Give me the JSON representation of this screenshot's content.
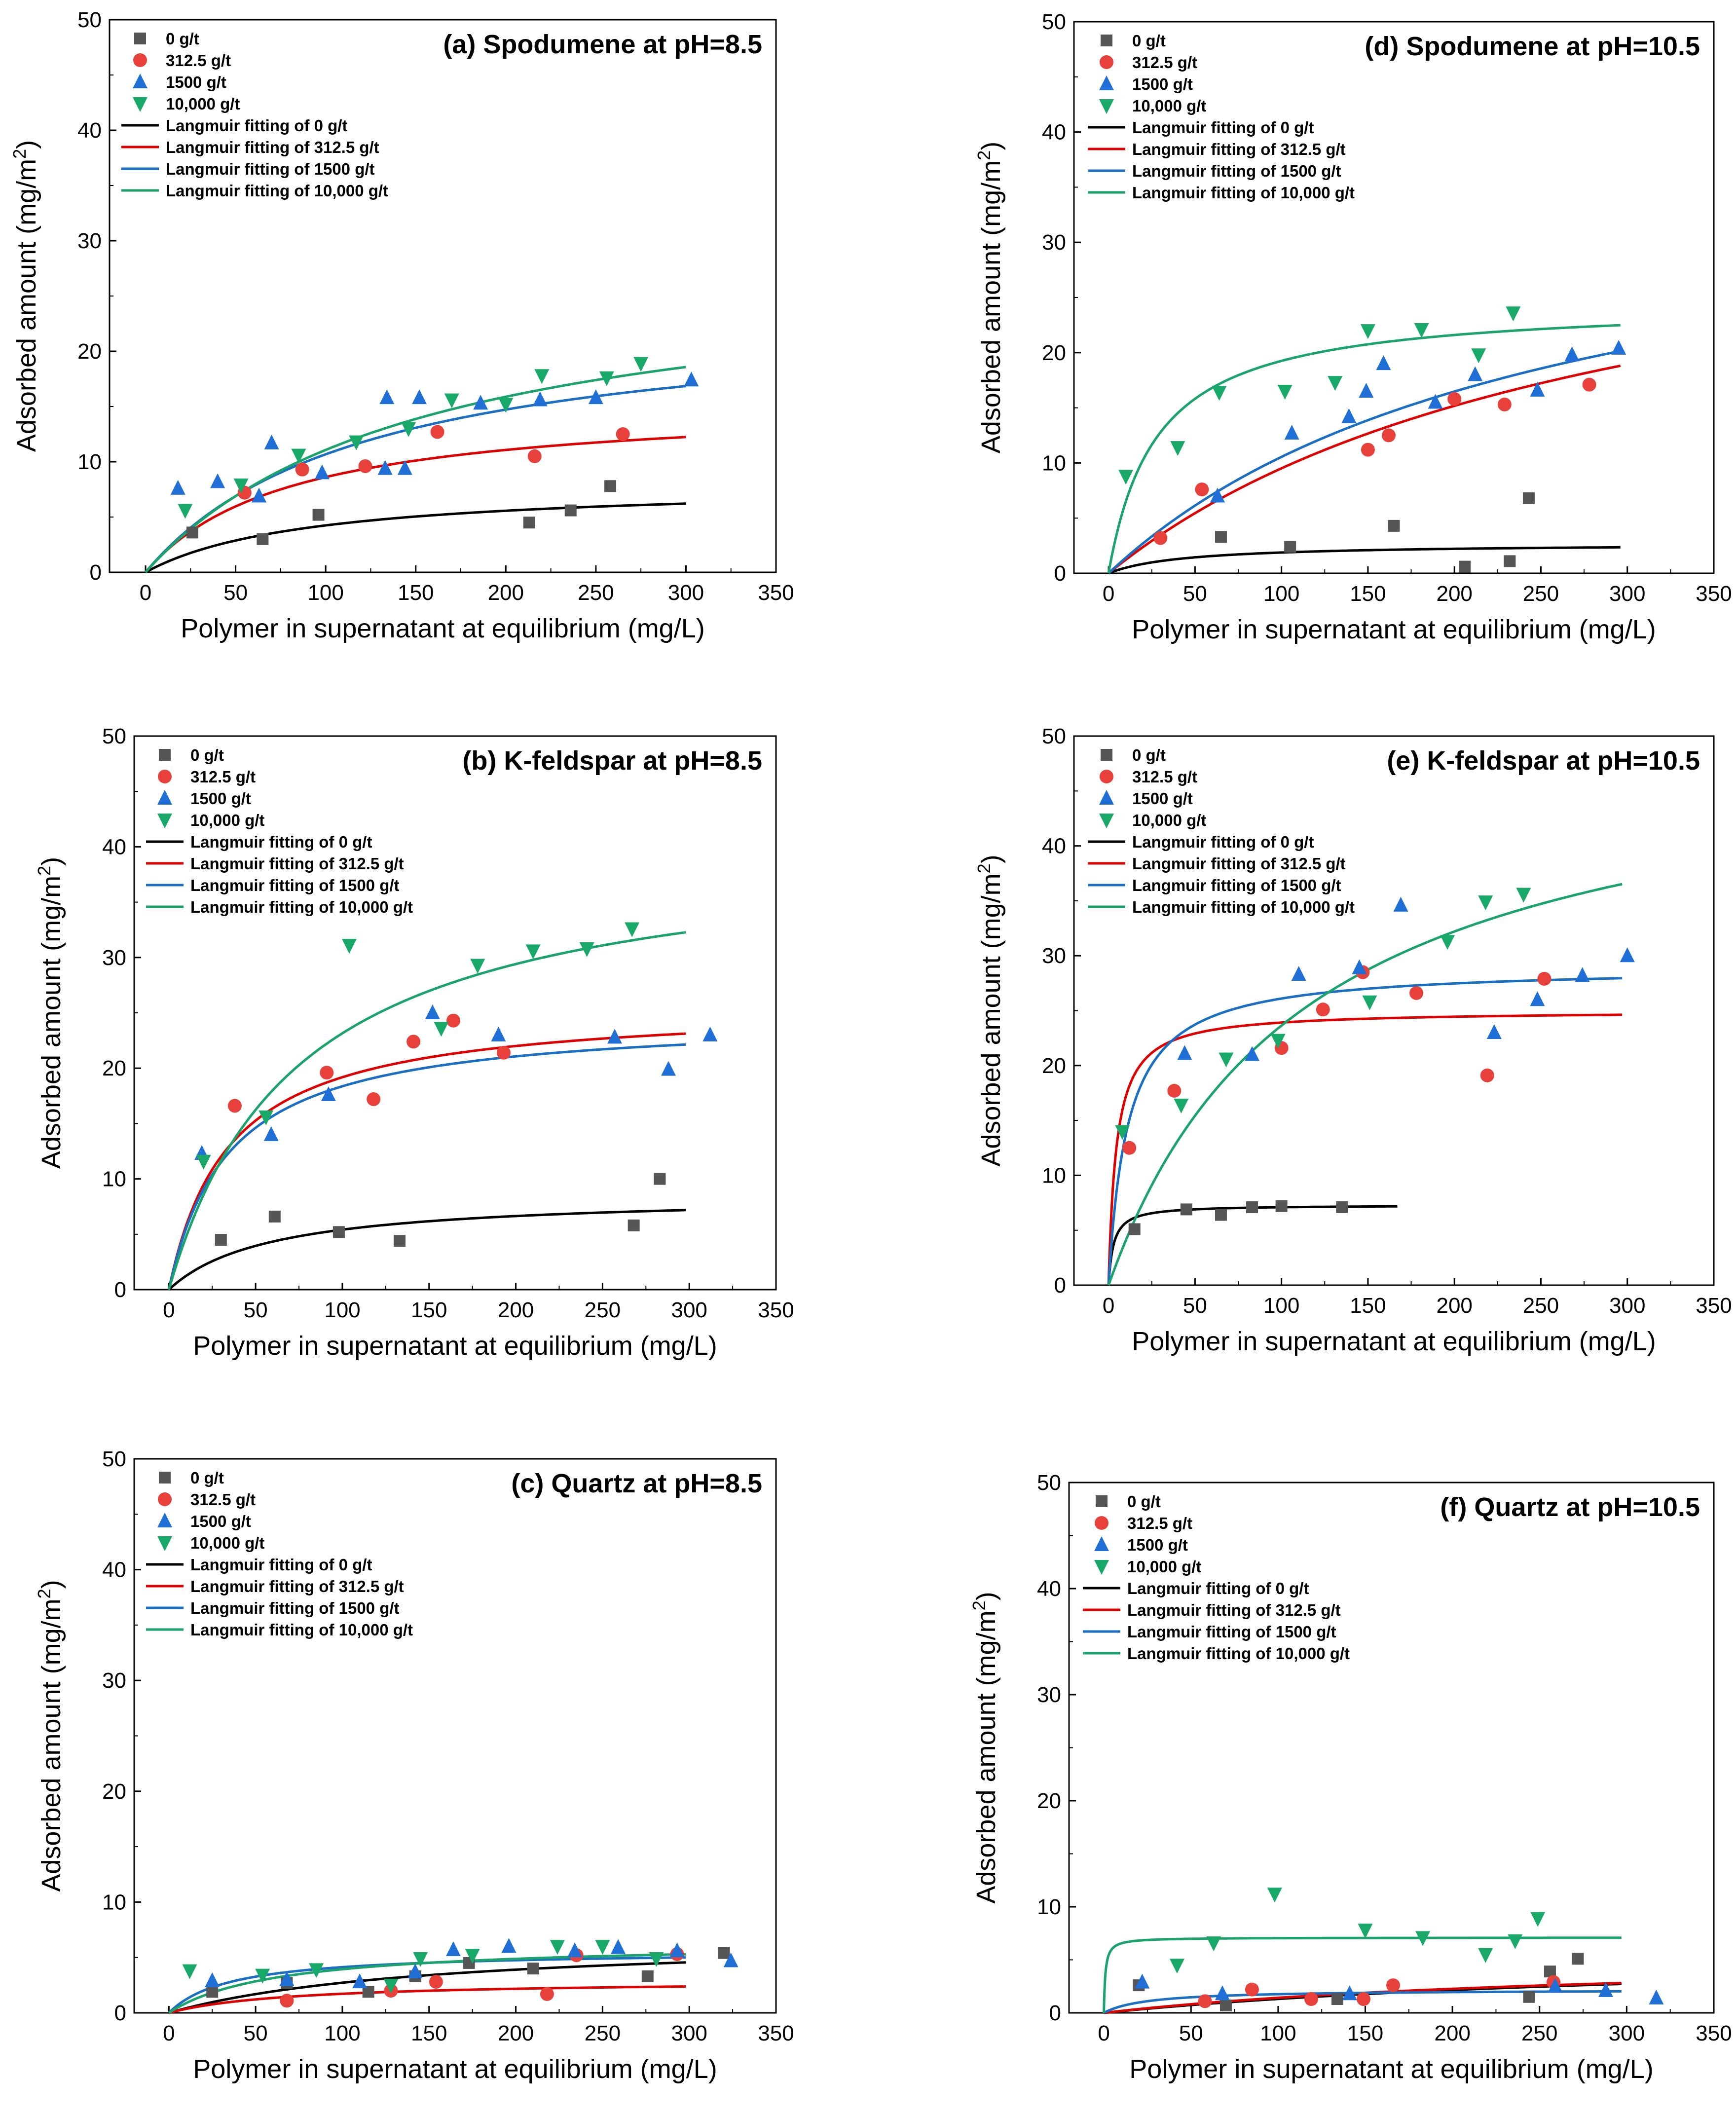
{
  "figure": {
    "xlabel": "Polymer in supernatant at equilibrium (mg/L)",
    "ylabel_main": "Adsorbed amount (mg/m",
    "ylabel_sup": "2",
    "ylabel_close": ")"
  },
  "colors": {
    "s0": "#555555",
    "s312": "#e8413b",
    "s1500": "#1f6fd6",
    "s10000": "#18a868",
    "fit0": "#000000",
    "fit312": "#e00000",
    "fit1500": "#1a6fc4",
    "fit10000": "#1aa36a"
  },
  "chart_data": [
    {
      "id": "a",
      "type": "scatter",
      "title": "(a) Spodumene at pH=8.5",
      "xlim": [
        -20,
        350
      ],
      "ylim": [
        0,
        50
      ],
      "xticks": [
        "0",
        "50",
        "100",
        "150",
        "200",
        "250",
        "300",
        "350"
      ],
      "yticks": [
        "0",
        "10",
        "20",
        "30",
        "40",
        "50"
      ],
      "series": [
        {
          "name": "0 g/t",
          "marker": "square",
          "x": [
            26,
            65,
            96,
            213,
            236,
            258
          ],
          "y": [
            3.6,
            3.0,
            5.2,
            4.5,
            5.6,
            7.8
          ]
        },
        {
          "name": "312.5 g/t",
          "marker": "circle",
          "x": [
            55,
            87,
            122,
            162,
            216,
            265
          ],
          "y": [
            7.2,
            9.3,
            9.6,
            12.7,
            10.5,
            12.5
          ]
        },
        {
          "name": "1500 g/t",
          "marker": "triangle-up",
          "x": [
            18,
            40,
            63,
            70,
            98,
            134,
            144,
            186,
            219,
            250,
            303,
            133,
            152
          ],
          "y": [
            7.6,
            8.2,
            6.9,
            11.7,
            9.0,
            15.8,
            9.4,
            15.3,
            15.6,
            15.8,
            17.4,
            9.4,
            15.8
          ]
        },
        {
          "name": "10,000 g/t",
          "marker": "triangle-down",
          "x": [
            22,
            53,
            85,
            117,
            146,
            170,
            200,
            220,
            256,
            275
          ],
          "y": [
            5.6,
            7.9,
            10.6,
            11.8,
            13.0,
            15.6,
            15.2,
            17.8,
            17.6,
            18.9
          ]
        }
      ],
      "fits": [
        {
          "name": "Langmuir fitting of 0 g/t",
          "qmax": 8.1,
          "K": 0.011,
          "xmax": 300
        },
        {
          "name": "Langmuir fitting of 312.5 g/t",
          "qmax": 15.5,
          "K": 0.0125,
          "xmax": 300
        },
        {
          "name": "Langmuir fitting of 1500 g/t",
          "qmax": 23.7,
          "K": 0.0082,
          "xmax": 300
        },
        {
          "name": "Langmuir fitting of 10,000 g/t",
          "qmax": 28.1,
          "K": 0.0065,
          "xmax": 300
        }
      ]
    },
    {
      "id": "b",
      "type": "scatter",
      "title": "(b) K-feldspar at pH=8.5",
      "xlim": [
        -20,
        350
      ],
      "ylim": [
        0,
        50
      ],
      "xticks": [
        "0",
        "50",
        "100",
        "150",
        "200",
        "250",
        "300",
        "350"
      ],
      "yticks": [
        "0",
        "10",
        "20",
        "30",
        "40",
        "50"
      ],
      "series": [
        {
          "name": "0 g/t",
          "marker": "square",
          "x": [
            30,
            61,
            98,
            133,
            268,
            283
          ],
          "y": [
            4.5,
            6.6,
            5.2,
            4.4,
            5.8,
            10.0
          ]
        },
        {
          "name": "312.5 g/t",
          "marker": "circle",
          "x": [
            38,
            91,
            118,
            141,
            164,
            193
          ],
          "y": [
            16.6,
            19.6,
            17.2,
            22.4,
            24.3,
            21.4
          ]
        },
        {
          "name": "1500 g/t",
          "marker": "triangle-up",
          "x": [
            19,
            59,
            92,
            152,
            190,
            257,
            288,
            312
          ],
          "y": [
            12.3,
            14.0,
            17.6,
            25.0,
            23.0,
            22.8,
            19.9,
            23.0
          ]
        },
        {
          "name": "10,000 g/t",
          "marker": "triangle-down",
          "x": [
            20,
            56,
            104,
            157,
            178,
            210,
            241,
            267
          ],
          "y": [
            11.6,
            15.6,
            31.1,
            23.6,
            29.3,
            30.6,
            30.8,
            32.6
          ]
        }
      ],
      "fits": [
        {
          "name": "Langmuir fitting of 0 g/t",
          "qmax": 8.6,
          "K": 0.017,
          "xmax": 298
        },
        {
          "name": "Langmuir fitting of 312.5 g/t",
          "qmax": 25.8,
          "K": 0.029,
          "xmax": 298
        },
        {
          "name": "Langmuir fitting of 1500 g/t",
          "qmax": 24.7,
          "K": 0.029,
          "xmax": 298
        },
        {
          "name": "Langmuir fitting of 10,000 g/t",
          "qmax": 40.3,
          "K": 0.0135,
          "xmax": 298
        }
      ]
    },
    {
      "id": "c",
      "type": "scatter",
      "title": "(c) Quartz at pH=8.5",
      "xlim": [
        -20,
        350
      ],
      "ylim": [
        0,
        50
      ],
      "xticks": [
        "0",
        "50",
        "100",
        "150",
        "200",
        "250",
        "300",
        "350"
      ],
      "yticks": [
        "0",
        "10",
        "20",
        "30",
        "40",
        "50"
      ],
      "series": [
        {
          "name": "0 g/t",
          "marker": "square",
          "x": [
            25,
            68,
            115,
            142,
            173,
            210,
            276,
            320
          ],
          "y": [
            1.9,
            2.7,
            1.9,
            3.3,
            4.5,
            4.0,
            3.3,
            5.4
          ]
        },
        {
          "name": "312.5 g/t",
          "marker": "circle",
          "x": [
            68,
            128,
            154,
            218,
            235,
            293
          ],
          "y": [
            1.1,
            2.0,
            2.8,
            1.7,
            5.2,
            5.3
          ]
        },
        {
          "name": "1500 g/t",
          "marker": "triangle-up",
          "x": [
            25,
            68,
            110,
            142,
            164,
            196,
            234,
            259,
            293,
            324
          ],
          "y": [
            2.9,
            3.0,
            2.8,
            3.7,
            5.7,
            6.0,
            5.6,
            5.9,
            5.6,
            4.7
          ]
        },
        {
          "name": "10,000 g/t",
          "marker": "triangle-down",
          "x": [
            12,
            54,
            85,
            128,
            145,
            175,
            224,
            250,
            281
          ],
          "y": [
            3.8,
            3.4,
            3.9,
            2.5,
            4.9,
            5.2,
            6.0,
            6.0,
            4.9
          ]
        }
      ],
      "fits": [
        {
          "name": "Langmuir fitting of 0 g/t",
          "qmax": 6.9,
          "K": 0.0065,
          "xmax": 298
        },
        {
          "name": "Langmuir fitting of 312.5 g/t",
          "qmax": 2.95,
          "K": 0.014,
          "xmax": 298
        },
        {
          "name": "Langmuir fitting of 1500 g/t",
          "qmax": 5.6,
          "K": 0.028,
          "xmax": 298
        },
        {
          "name": "Langmuir fitting of 10,000 g/t",
          "qmax": 6.4,
          "K": 0.016,
          "xmax": 298
        }
      ]
    },
    {
      "id": "d",
      "type": "scatter",
      "title": "(d) Spodumene at pH=10.5",
      "xlim": [
        -20,
        350
      ],
      "ylim": [
        0,
        50
      ],
      "xticks": [
        "0",
        "50",
        "100",
        "150",
        "200",
        "250",
        "300",
        "350"
      ],
      "yticks": [
        "0",
        "10",
        "20",
        "30",
        "40",
        "50"
      ],
      "series": [
        {
          "name": "0 g/t",
          "marker": "square",
          "x": [
            65,
            105,
            165,
            206,
            232,
            243
          ],
          "y": [
            3.3,
            2.4,
            4.3,
            0.6,
            1.1,
            6.8
          ]
        },
        {
          "name": "312.5 g/t",
          "marker": "circle",
          "x": [
            30,
            54,
            150,
            162,
            200,
            229,
            278
          ],
          "y": [
            3.2,
            7.6,
            11.2,
            12.5,
            15.8,
            15.3,
            17.1
          ]
        },
        {
          "name": "1500 g/t",
          "marker": "triangle-up",
          "x": [
            63,
            106,
            139,
            149,
            159,
            189,
            212,
            248,
            268,
            295
          ],
          "y": [
            7.0,
            12.7,
            14.2,
            16.5,
            19.0,
            15.5,
            18.0,
            16.6,
            19.8,
            20.4
          ]
        },
        {
          "name": "10,000 g/t",
          "marker": "triangle-down",
          "x": [
            10,
            40,
            64,
            102,
            131,
            150,
            181,
            214,
            234
          ],
          "y": [
            8.8,
            11.4,
            16.4,
            16.5,
            17.3,
            22.0,
            22.1,
            19.8,
            23.6
          ]
        }
      ],
      "fits": [
        {
          "name": "Langmuir fitting of 0 g/t",
          "qmax": 2.7,
          "K": 0.023,
          "xmax": 296
        },
        {
          "name": "Langmuir fitting of 312.5 g/t",
          "qmax": 37.5,
          "K": 0.0034,
          "xmax": 296
        },
        {
          "name": "Langmuir fitting of 1500 g/t",
          "qmax": 37.6,
          "K": 0.0039,
          "xmax": 296
        },
        {
          "name": "Langmuir fitting of 10,000 g/t",
          "qmax": 24.6,
          "K": 0.036,
          "xmax": 296
        }
      ]
    },
    {
      "id": "e",
      "type": "scatter",
      "title": "(e) K-feldspar at pH=10.5",
      "xlim": [
        -20,
        350
      ],
      "ylim": [
        0,
        50
      ],
      "xticks": [
        "0",
        "50",
        "100",
        "150",
        "200",
        "250",
        "300",
        "350"
      ],
      "yticks": [
        "0",
        "10",
        "20",
        "30",
        "40",
        "50"
      ],
      "series": [
        {
          "name": "0 g/t",
          "marker": "square",
          "x": [
            15,
            45,
            65,
            83,
            100,
            135
          ],
          "y": [
            5.1,
            6.9,
            6.4,
            7.1,
            7.2,
            7.1
          ]
        },
        {
          "name": "312.5 g/t",
          "marker": "circle",
          "x": [
            12,
            38,
            100,
            124,
            147,
            178,
            219,
            252
          ],
          "y": [
            12.5,
            17.7,
            21.6,
            25.1,
            28.5,
            26.6,
            19.1,
            27.9
          ]
        },
        {
          "name": "1500 g/t",
          "marker": "triangle-up",
          "x": [
            44,
            83,
            110,
            145,
            169,
            223,
            248,
            274,
            300
          ],
          "y": [
            21.1,
            21.0,
            28.3,
            28.9,
            34.6,
            23.0,
            26.0,
            28.2,
            30.0
          ]
        },
        {
          "name": "10,000 g/t",
          "marker": "triangle-down",
          "x": [
            8,
            42,
            68,
            98,
            151,
            196,
            218,
            240
          ],
          "y": [
            14.0,
            16.4,
            20.6,
            22.3,
            25.8,
            31.3,
            34.9,
            35.6
          ]
        }
      ],
      "fits": [
        {
          "name": "Langmuir fitting of 0 g/t",
          "qmax": 7.3,
          "K": 0.35,
          "xmax": 167
        },
        {
          "name": "Langmuir fitting of 312.5 g/t",
          "qmax": 25.0,
          "K": 0.22,
          "xmax": 297
        },
        {
          "name": "Langmuir fitting of 1500 g/t",
          "qmax": 29.0,
          "K": 0.09,
          "xmax": 297
        },
        {
          "name": "Langmuir fitting of 10,000 g/t",
          "qmax": 50.5,
          "K": 0.0088,
          "xmax": 297
        }
      ]
    },
    {
      "id": "f",
      "type": "scatter",
      "title": "(f) Quartz at pH=10.5",
      "xlim": [
        -20,
        350
      ],
      "ylim": [
        0,
        50
      ],
      "xticks": [
        "0",
        "50",
        "100",
        "150",
        "200",
        "250",
        "300",
        "350"
      ],
      "yticks": [
        "0",
        "10",
        "20",
        "30",
        "40",
        "50"
      ],
      "series": [
        {
          "name": "0 g/t",
          "marker": "square",
          "x": [
            20,
            70,
            134,
            244,
            256,
            272
          ],
          "y": [
            2.6,
            0.7,
            1.3,
            1.5,
            3.9,
            5.1
          ]
        },
        {
          "name": "312.5 g/t",
          "marker": "circle",
          "x": [
            58,
            85,
            119,
            149,
            166,
            258
          ],
          "y": [
            1.1,
            2.2,
            1.3,
            1.3,
            2.6,
            2.9
          ]
        },
        {
          "name": "1500 g/t",
          "marker": "triangle-up",
          "x": [
            22,
            68,
            141,
            259,
            288,
            317
          ],
          "y": [
            2.9,
            1.8,
            1.8,
            2.5,
            2.1,
            1.4
          ]
        },
        {
          "name": "10,000 g/t",
          "marker": "triangle-down",
          "x": [
            42,
            63,
            98,
            150,
            183,
            219,
            236,
            249
          ],
          "y": [
            4.5,
            6.6,
            11.2,
            7.8,
            7.1,
            5.5,
            6.8,
            8.9
          ]
        }
      ],
      "fits": [
        {
          "name": "Langmuir fitting of 0 g/t",
          "qmax": 6.0,
          "K": 0.0028,
          "xmax": 297
        },
        {
          "name": "Langmuir fitting of 312.5 g/t",
          "qmax": 5.6,
          "K": 0.0034,
          "xmax": 297
        },
        {
          "name": "Langmuir fitting of 1500 g/t",
          "qmax": 2.2,
          "K": 0.04,
          "xmax": 297
        },
        {
          "name": "Langmuir fitting of 10,000 g/t",
          "qmax": 7.1,
          "K": 1.2,
          "xmax": 297
        }
      ]
    }
  ]
}
